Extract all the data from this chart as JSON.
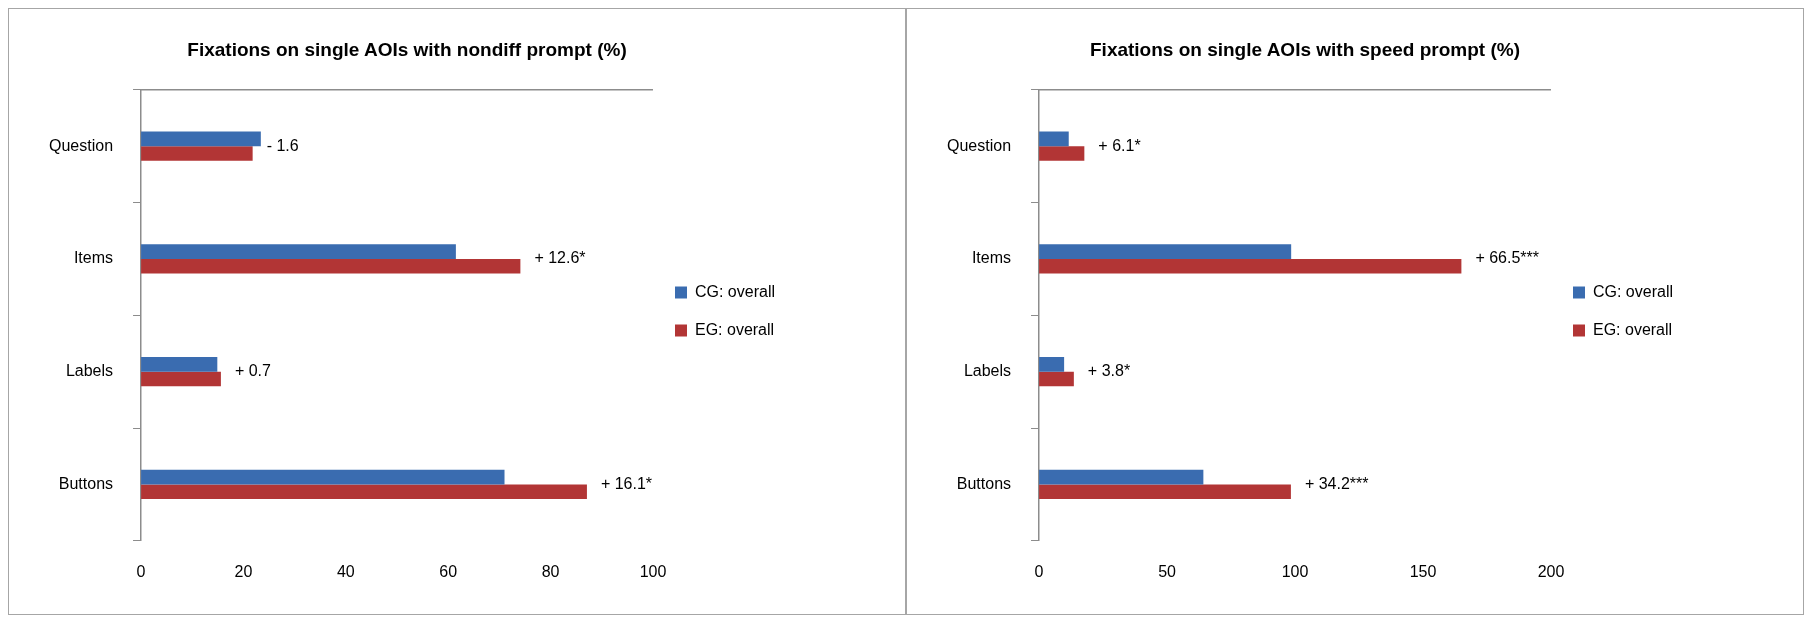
{
  "chart_data": [
    {
      "type": "bar",
      "orientation": "horizontal",
      "title": "Fixations on single AOIs with nondiff prompt (%)",
      "categories": [
        "Question",
        "Items",
        "Labels",
        "Buttons"
      ],
      "series": [
        {
          "name": "CG: overall",
          "color": "#3a6cb0",
          "values": [
            23.4,
            61.5,
            14.9,
            71.0
          ]
        },
        {
          "name": "EG: overall",
          "color": "#b23535",
          "values": [
            21.8,
            74.1,
            15.6,
            87.1
          ]
        }
      ],
      "xlim": [
        0,
        100
      ],
      "xticks": [
        0,
        20,
        40,
        60,
        80,
        100
      ],
      "grid": false,
      "legend": "right",
      "annotations": [
        {
          "text": "- 1.6",
          "x": 21.8,
          "y": "Question"
        },
        {
          "text": "+ 12.6*",
          "x": 74.1,
          "y": "Items"
        },
        {
          "text": "+ 0.7",
          "x": 15.6,
          "y": "Labels"
        },
        {
          "text": "+ 16.1*",
          "x": 87.1,
          "y": "Buttons"
        }
      ]
    },
    {
      "type": "bar",
      "orientation": "horizontal",
      "title": "Fixations on single AOIs with speed prompt (%)",
      "categories": [
        "Question",
        "Items",
        "Labels",
        "Buttons"
      ],
      "series": [
        {
          "name": "CG: overall",
          "color": "#3a6cb0",
          "values": [
            11.6,
            98.5,
            9.8,
            64.2
          ]
        },
        {
          "name": "EG: overall",
          "color": "#b23535",
          "values": [
            17.7,
            165.0,
            13.6,
            98.4
          ]
        }
      ],
      "xlim": [
        0,
        200
      ],
      "xticks": [
        0,
        50,
        100,
        150,
        200
      ],
      "grid": false,
      "legend": "right",
      "annotations": [
        {
          "text": "+ 6.1*",
          "x": 17.7,
          "y": "Question"
        },
        {
          "text": "+ 66.5***",
          "x": 165.0,
          "y": "Items"
        },
        {
          "text": "+ 3.8*",
          "x": 13.6,
          "y": "Labels"
        },
        {
          "text": "+ 34.2***",
          "x": 98.4,
          "y": "Buttons"
        }
      ]
    }
  ]
}
